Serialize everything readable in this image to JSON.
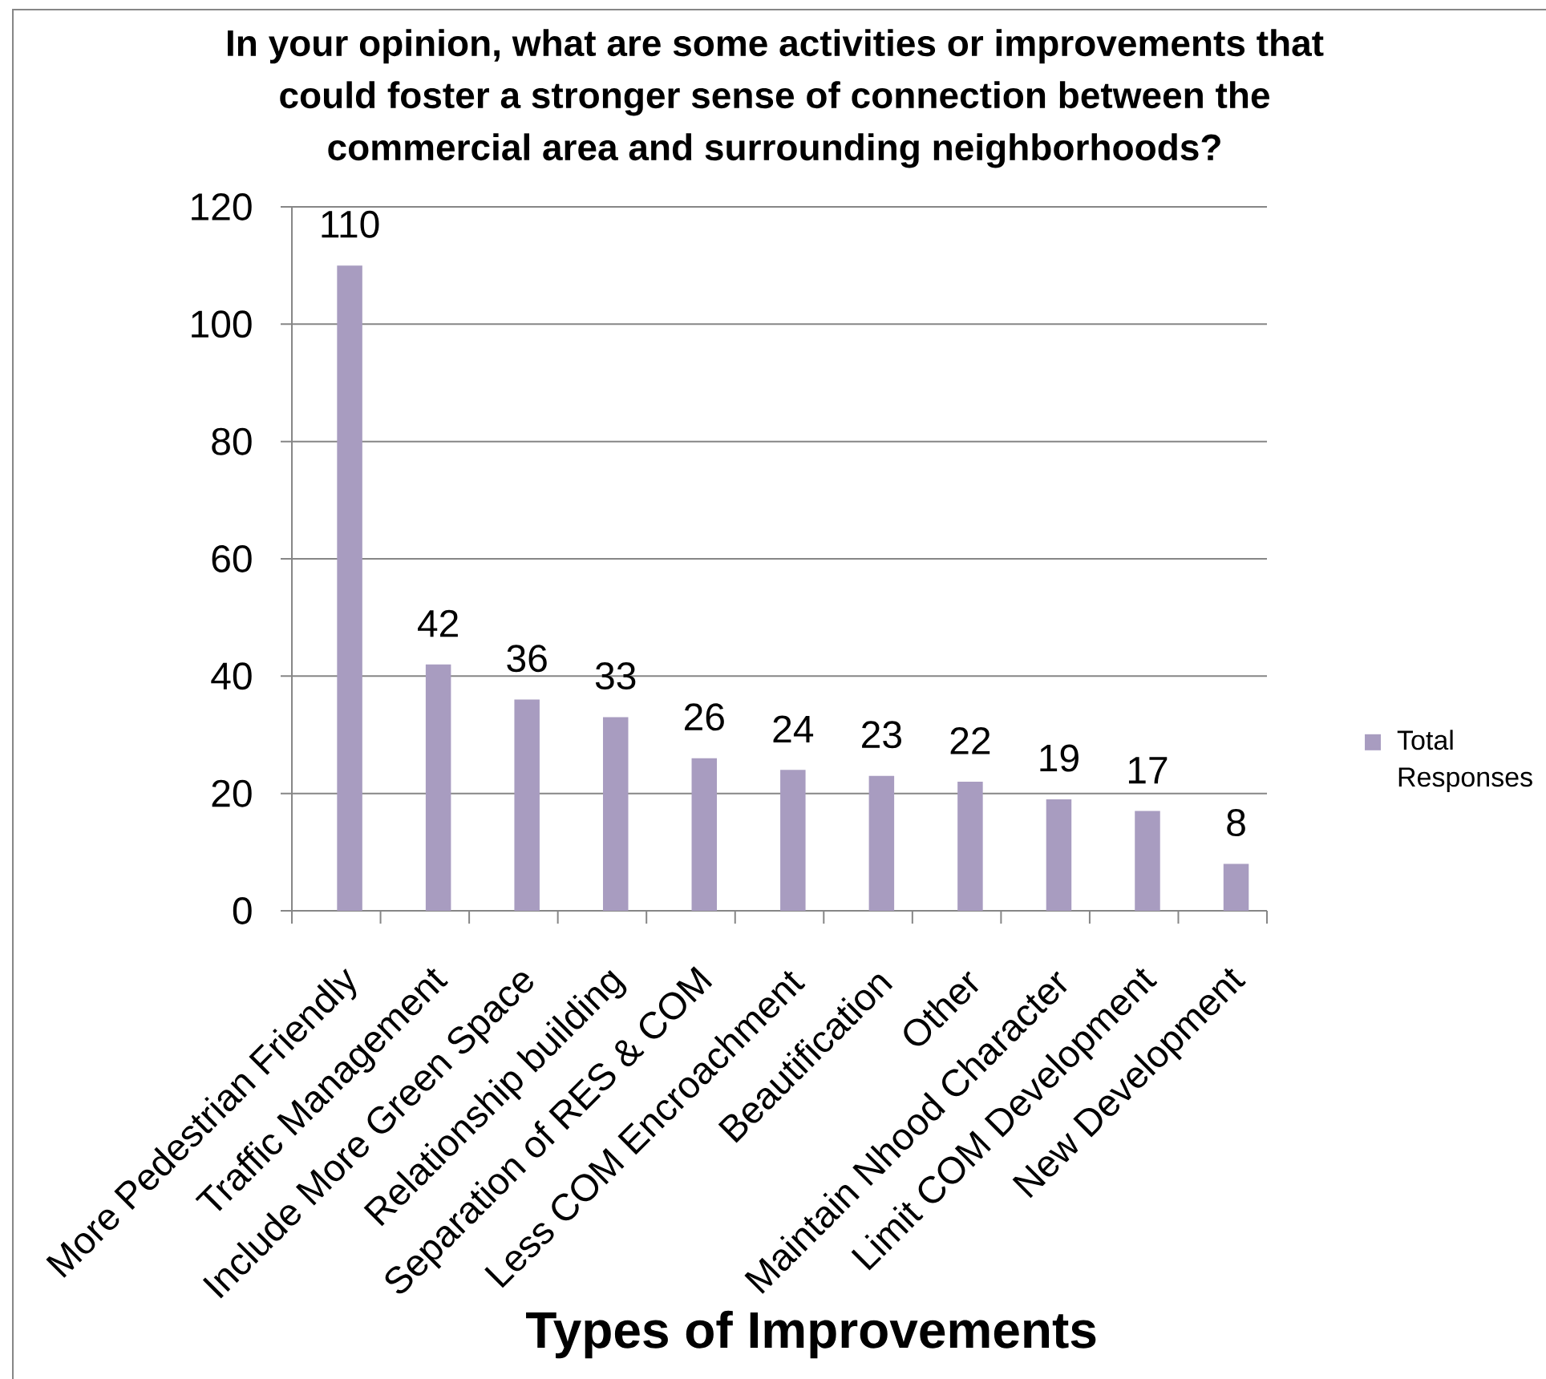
{
  "chart_data": {
    "type": "bar",
    "title": "In your opinion, what are some activities or improvements that could foster a stronger sense of connection between the commercial area and surrounding neighborhoods?",
    "xlabel": "Types of Improvements",
    "categories": [
      "More Pedestrian Friendly",
      "Traffic Management",
      "Include More Green Space",
      "Relationship building",
      "Separation of RES & COM",
      "Less COM Encroachment",
      "Beautification",
      "Other",
      "Maintain Nhood Character",
      "Limit COM Development",
      "New Development"
    ],
    "series": [
      {
        "name": "Total Responses",
        "color": "#a89cc0",
        "values": [
          110,
          42,
          36,
          33,
          26,
          24,
          23,
          22,
          19,
          17,
          8
        ]
      }
    ],
    "ylim": [
      0,
      120
    ],
    "yticks": [
      0,
      20,
      40,
      60,
      80,
      100,
      120
    ],
    "grid": "y",
    "legend": "right",
    "data_labels": true
  }
}
